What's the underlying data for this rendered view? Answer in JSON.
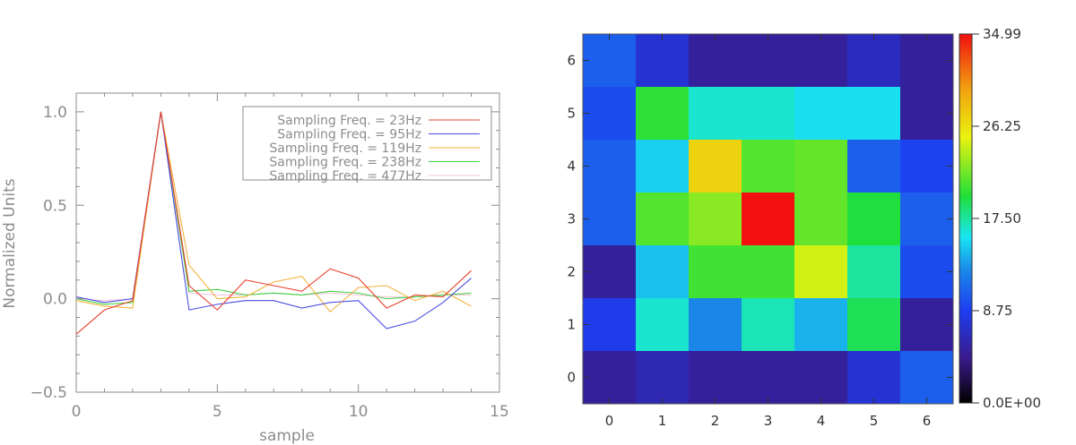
{
  "chart_data": [
    {
      "type": "line",
      "title": "",
      "xlabel": "sample",
      "ylabel": "Normalized Units",
      "xlim": [
        0,
        15
      ],
      "ylim": [
        -0.5,
        1.1
      ],
      "xticks": [
        "0",
        "5",
        "10",
        "15"
      ],
      "yticks": [
        "1.0",
        "0.5",
        "0.0",
        "−0.5"
      ],
      "legend_placement": "top-right",
      "x": [
        0,
        1,
        2,
        3,
        4,
        5,
        6,
        7,
        8,
        9,
        10,
        11,
        12,
        13,
        14
      ],
      "series": [
        {
          "name": "Sampling Freq. = 23Hz",
          "color": "#e8412e",
          "values": [
            -0.19,
            -0.06,
            -0.01,
            1.0,
            0.07,
            -0.06,
            0.1,
            0.07,
            0.04,
            0.16,
            0.11,
            -0.05,
            0.02,
            0.01,
            0.15
          ]
        },
        {
          "name": "Sampling Freq. = 95Hz",
          "color": "#4a4ee0",
          "values": [
            0.01,
            -0.02,
            0.0,
            1.0,
            -0.06,
            -0.03,
            -0.01,
            -0.01,
            -0.05,
            -0.02,
            -0.01,
            -0.16,
            -0.12,
            -0.02,
            0.11
          ]
        },
        {
          "name": "Sampling Freq. = 119Hz",
          "color": "#f2b33d",
          "values": [
            -0.01,
            -0.04,
            -0.05,
            1.0,
            0.18,
            0.0,
            0.01,
            0.09,
            0.12,
            -0.07,
            0.06,
            0.07,
            -0.01,
            0.04,
            -0.04
          ]
        },
        {
          "name": "Sampling Freq. = 238Hz",
          "color": "#42d142",
          "values": [
            0.0,
            -0.03,
            -0.02,
            1.0,
            0.04,
            0.05,
            0.02,
            0.03,
            0.02,
            0.04,
            0.03,
            0.0,
            0.01,
            0.02,
            0.03
          ]
        },
        {
          "name": "Sampling Freq. = 477Hz",
          "color": "#f4c6e0",
          "values": [
            0.0,
            -0.01,
            0.0,
            1.0,
            0.03,
            0.02,
            0.02,
            0.03,
            0.02,
            0.03,
            0.02,
            0.01,
            0.01,
            0.02,
            0.02
          ]
        }
      ]
    },
    {
      "type": "heatmap",
      "title": "",
      "x_categories": [
        "0",
        "1",
        "2",
        "3",
        "4",
        "5",
        "6"
      ],
      "y_categories": [
        "0",
        "1",
        "2",
        "3",
        "4",
        "5",
        "6"
      ],
      "colorbar_ticks": [
        "0.0E+00",
        "8.75",
        "17.50",
        "26.25",
        "34.99"
      ],
      "value_range": [
        0,
        34.99
      ],
      "rows_top_to_bottom": [
        [
          10.5,
          7.5,
          5.0,
          5.0,
          5.0,
          6.5,
          5.0
        ],
        [
          9.5,
          20.0,
          16.5,
          16.5,
          15.5,
          15.5,
          5.0
        ],
        [
          10.5,
          15.0,
          27.0,
          21.0,
          21.5,
          10.5,
          9.0
        ],
        [
          10.5,
          21.0,
          22.5,
          34.99,
          21.5,
          19.5,
          10.5
        ],
        [
          5.0,
          14.5,
          20.5,
          20.5,
          24.5,
          17.5,
          9.5
        ],
        [
          8.5,
          16.5,
          12.5,
          17.0,
          14.0,
          19.0,
          5.0
        ],
        [
          5.0,
          6.0,
          5.0,
          5.0,
          5.0,
          7.5,
          10.5
        ]
      ]
    }
  ]
}
